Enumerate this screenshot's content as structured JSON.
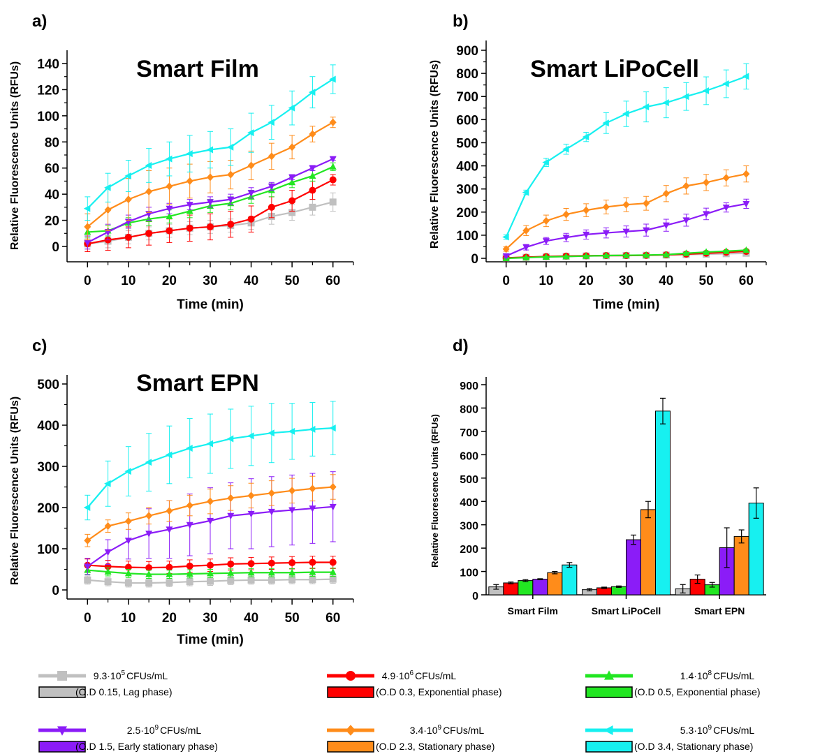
{
  "figure": {
    "panel_labels": [
      "a)",
      "b)",
      "c)",
      "d)"
    ]
  },
  "legend": [
    {
      "line1_base": "9.3·10",
      "line1_exp": "5",
      "line1_unit": "CFUs/mL",
      "line2": "(O.D 0.15, Lag phase)",
      "color": "#c0c0c0",
      "marker": "square"
    },
    {
      "line1_base": "4.9·10",
      "line1_exp": "6",
      "line1_unit": "CFUs/mL",
      "line2": "(O.D 0.3, Exponential phase)",
      "color": "#ff0000",
      "marker": "circle"
    },
    {
      "line1_base": "1.4·10",
      "line1_exp": "8",
      "line1_unit": "CFUs/mL",
      "line2": "(O.D 0.5, Exponential phase)",
      "color": "#22e622",
      "marker": "triangle-up"
    },
    {
      "line1_base": "2.5·10",
      "line1_exp": "9",
      "line1_unit": "CFUs/mL",
      "line2": "(O.D 1.5, Early stationary phase)",
      "color": "#8b1cf7",
      "marker": "triangle-down"
    },
    {
      "line1_base": "3.4·10",
      "line1_exp": "9",
      "line1_unit": "CFUs/mL",
      "line2": "(O.D 2.3, Stationary phase)",
      "color": "#ff8c1a",
      "marker": "diamond"
    },
    {
      "line1_base": "5.3·10",
      "line1_exp": "9",
      "line1_unit": "CFUs/mL",
      "line2": "(O.D 3.4, Stationary phase)",
      "color": "#17f0f0",
      "marker": "triangle-left"
    }
  ],
  "chart_data": [
    {
      "type": "line",
      "panel": "a)",
      "title": "Smart Film",
      "xlabel": "Time (min)",
      "ylabel": "Relative Fluorescence Units (RFUs)",
      "xlim": [
        -5,
        65
      ],
      "ylim": [
        -10,
        150
      ],
      "xticks": [
        0,
        10,
        20,
        30,
        40,
        50,
        60
      ],
      "yticks": [
        0,
        20,
        40,
        60,
        80,
        100,
        120,
        140
      ],
      "x": [
        0,
        5,
        10,
        15,
        20,
        25,
        30,
        35,
        40,
        45,
        50,
        55,
        60
      ],
      "series": [
        {
          "values": [
            2,
            4,
            7,
            10,
            12,
            14,
            15,
            16,
            18,
            23,
            26,
            30,
            34
          ],
          "errors": [
            4,
            5,
            5,
            5,
            5,
            5,
            5,
            5,
            5,
            6,
            6,
            6,
            7
          ]
        },
        {
          "values": [
            2,
            5,
            7,
            10,
            12,
            14,
            15,
            17,
            21,
            30,
            35,
            43,
            51
          ],
          "errors": [
            6,
            8,
            8,
            9,
            9,
            10,
            10,
            10,
            10,
            8,
            8,
            7,
            4
          ]
        },
        {
          "values": [
            11,
            12,
            18,
            21,
            23,
            27,
            31,
            33,
            38,
            43,
            49,
            54,
            61
          ],
          "errors": [
            4,
            4,
            4,
            5,
            5,
            5,
            5,
            5,
            5,
            5,
            4,
            4,
            3
          ]
        },
        {
          "values": [
            3,
            11,
            19,
            25,
            29,
            32,
            34,
            36,
            41,
            46,
            53,
            60,
            67
          ],
          "errors": [
            5,
            6,
            5,
            5,
            4,
            4,
            4,
            4,
            4,
            3,
            2,
            2,
            1
          ]
        },
        {
          "values": [
            15,
            28,
            36,
            42,
            46,
            50,
            53,
            55,
            62,
            69,
            76,
            86,
            95
          ],
          "errors": [
            10,
            16,
            16,
            16,
            14,
            13,
            12,
            11,
            11,
            10,
            9,
            6,
            4
          ]
        },
        {
          "values": [
            29,
            45,
            54,
            62,
            67,
            71,
            74,
            76,
            87,
            95,
            106,
            118,
            128
          ],
          "errors": [
            9,
            11,
            12,
            13,
            13,
            14,
            14,
            14,
            15,
            13,
            13,
            12,
            11
          ]
        }
      ]
    },
    {
      "type": "line",
      "panel": "b)",
      "title": "Smart LiPoCell",
      "xlabel": "Time (min)",
      "ylabel": "Relative Fluorescence Units (RFUs)",
      "xlim": [
        -5,
        65
      ],
      "ylim": [
        -15,
        910
      ],
      "xticks": [
        0,
        10,
        20,
        30,
        40,
        50,
        60
      ],
      "yticks": [
        0,
        100,
        200,
        300,
        400,
        500,
        600,
        700,
        800,
        900
      ],
      "x": [
        0,
        5,
        10,
        15,
        20,
        25,
        30,
        35,
        40,
        45,
        50,
        55,
        60
      ],
      "series": [
        {
          "values": [
            2,
            4,
            6,
            8,
            10,
            11,
            12,
            13,
            14,
            16,
            18,
            20,
            22
          ],
          "errors": [
            3,
            3,
            3,
            3,
            3,
            3,
            3,
            3,
            3,
            3,
            3,
            3,
            4
          ]
        },
        {
          "values": [
            2,
            5,
            8,
            10,
            11,
            12,
            12,
            13,
            15,
            18,
            22,
            26,
            30
          ],
          "errors": [
            3,
            3,
            3,
            3,
            3,
            3,
            3,
            3,
            3,
            3,
            3,
            3,
            3
          ]
        },
        {
          "values": [
            0,
            3,
            6,
            8,
            10,
            12,
            13,
            14,
            16,
            22,
            27,
            31,
            35
          ],
          "errors": [
            3,
            3,
            3,
            3,
            3,
            3,
            3,
            3,
            3,
            4,
            4,
            4,
            4
          ]
        },
        {
          "values": [
            10,
            48,
            75,
            90,
            103,
            110,
            116,
            122,
            143,
            165,
            192,
            220,
            236
          ],
          "errors": [
            5,
            12,
            15,
            18,
            20,
            22,
            24,
            26,
            26,
            26,
            25,
            20,
            20
          ]
        },
        {
          "values": [
            40,
            120,
            162,
            190,
            208,
            222,
            232,
            238,
            280,
            313,
            328,
            348,
            365
          ],
          "errors": [
            10,
            22,
            25,
            26,
            28,
            30,
            30,
            30,
            35,
            35,
            35,
            35,
            35
          ]
        },
        {
          "values": [
            92,
            285,
            415,
            472,
            525,
            585,
            625,
            655,
            673,
            700,
            725,
            755,
            787
          ],
          "errors": [
            10,
            10,
            18,
            22,
            20,
            45,
            55,
            65,
            65,
            60,
            60,
            60,
            55
          ]
        }
      ]
    },
    {
      "type": "line",
      "panel": "c)",
      "title": "Smart EPN",
      "xlabel": "Time (min)",
      "ylabel": "Relative Fluorescence Units (RFUs)",
      "xlim": [
        -5,
        65
      ],
      "ylim": [
        -10,
        505
      ],
      "xticks": [
        0,
        10,
        20,
        30,
        40,
        50,
        60
      ],
      "yticks": [
        0,
        100,
        200,
        300,
        400,
        500
      ],
      "x": [
        0,
        5,
        10,
        15,
        20,
        25,
        30,
        35,
        40,
        45,
        50,
        55,
        60
      ],
      "series": [
        {
          "values": [
            24,
            20,
            17,
            17,
            18,
            20,
            21,
            23,
            24,
            24,
            25,
            25,
            26
          ],
          "errors": [
            10,
            10,
            10,
            10,
            10,
            10,
            10,
            10,
            10,
            10,
            10,
            10,
            10
          ]
        },
        {
          "values": [
            60,
            57,
            55,
            54,
            55,
            58,
            60,
            63,
            64,
            65,
            66,
            67,
            67
          ],
          "errors": [
            15,
            15,
            15,
            15,
            15,
            15,
            15,
            15,
            15,
            15,
            15,
            15,
            15
          ]
        },
        {
          "values": [
            48,
            44,
            40,
            38,
            38,
            39,
            40,
            41,
            42,
            42,
            42,
            43,
            43
          ],
          "errors": [
            10,
            10,
            10,
            10,
            10,
            10,
            10,
            10,
            10,
            10,
            10,
            10,
            10
          ]
        },
        {
          "values": [
            57,
            92,
            120,
            137,
            147,
            158,
            168,
            180,
            185,
            190,
            194,
            198,
            202
          ],
          "errors": [
            20,
            30,
            45,
            60,
            70,
            75,
            80,
            80,
            85,
            85,
            85,
            85,
            85
          ]
        },
        {
          "values": [
            120,
            155,
            167,
            180,
            192,
            205,
            215,
            223,
            229,
            235,
            241,
            246,
            250
          ],
          "errors": [
            15,
            15,
            20,
            20,
            25,
            25,
            30,
            30,
            30,
            30,
            30,
            30,
            30
          ]
        },
        {
          "values": [
            200,
            258,
            288,
            310,
            328,
            344,
            355,
            367,
            374,
            381,
            385,
            390,
            393
          ],
          "errors": [
            30,
            55,
            60,
            70,
            70,
            72,
            72,
            72,
            72,
            72,
            68,
            65,
            65
          ]
        }
      ]
    },
    {
      "type": "bar",
      "panel": "d)",
      "ylabel": "Relative Fluorescence Units (RFUs)",
      "ylim": [
        0,
        900
      ],
      "yticks": [
        0,
        100,
        200,
        300,
        400,
        500,
        600,
        700,
        800,
        900
      ],
      "categories": [
        "Smart Film",
        "Smart LiPoCell",
        "Smart EPN"
      ],
      "series": [
        {
          "values": [
            34,
            22,
            26
          ],
          "errors": [
            10,
            5,
            18
          ]
        },
        {
          "values": [
            51,
            30,
            67
          ],
          "errors": [
            4,
            3,
            18
          ]
        },
        {
          "values": [
            61,
            35,
            43
          ],
          "errors": [
            4,
            3,
            10
          ]
        },
        {
          "values": [
            67,
            236,
            202
          ],
          "errors": [
            2,
            20,
            85
          ]
        },
        {
          "values": [
            95,
            365,
            250
          ],
          "errors": [
            5,
            35,
            28
          ]
        },
        {
          "values": [
            128,
            787,
            393
          ],
          "errors": [
            10,
            55,
            65
          ]
        }
      ]
    }
  ]
}
